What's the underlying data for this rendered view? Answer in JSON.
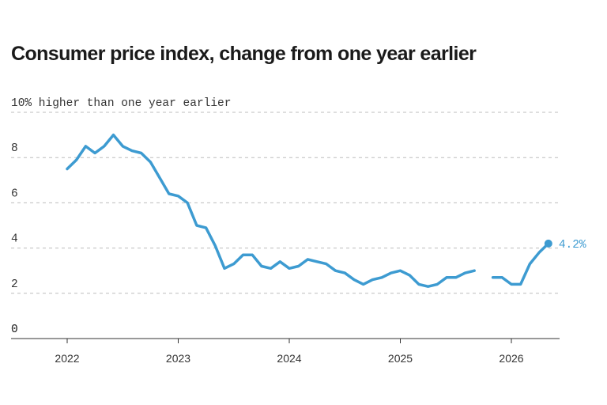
{
  "chart_data": {
    "type": "line",
    "title": "Consumer price index, change from one year earlier",
    "ylabel": "10% higher than one year earlier",
    "ylim": [
      0,
      10
    ],
    "yticks": [
      {
        "value": 10,
        "label": ""
      },
      {
        "value": 8,
        "label": "8"
      },
      {
        "value": 6,
        "label": "6"
      },
      {
        "value": 4,
        "label": "4"
      },
      {
        "value": 2,
        "label": "2"
      },
      {
        "value": 0,
        "label": "0"
      }
    ],
    "xlim": [
      "2021-07",
      "2026-07"
    ],
    "xticks": [
      {
        "value": "2022-01",
        "label": "2022"
      },
      {
        "value": "2023-01",
        "label": "2023"
      },
      {
        "value": "2024-01",
        "label": "2024"
      },
      {
        "value": "2025-01",
        "label": "2025"
      },
      {
        "value": "2026-01",
        "label": "2026"
      }
    ],
    "grid": true,
    "series": [
      {
        "color": "#3d9bd1",
        "points": [
          [
            "2022-01",
            7.5
          ],
          [
            "2022-02",
            7.9
          ],
          [
            "2022-03",
            8.5
          ],
          [
            "2022-04",
            8.2
          ],
          [
            "2022-05",
            8.5
          ],
          [
            "2022-06",
            9.0
          ],
          [
            "2022-07",
            8.5
          ],
          [
            "2022-08",
            8.3
          ],
          [
            "2022-09",
            8.2
          ],
          [
            "2022-10",
            7.8
          ],
          [
            "2022-11",
            7.1
          ],
          [
            "2022-12",
            6.4
          ],
          [
            "2023-01",
            6.3
          ],
          [
            "2023-02",
            6.0
          ],
          [
            "2023-03",
            5.0
          ],
          [
            "2023-04",
            4.9
          ],
          [
            "2023-05",
            4.1
          ],
          [
            "2023-06",
            3.1
          ],
          [
            "2023-07",
            3.3
          ],
          [
            "2023-08",
            3.7
          ],
          [
            "2023-09",
            3.7
          ],
          [
            "2023-10",
            3.2
          ],
          [
            "2023-11",
            3.1
          ],
          [
            "2023-12",
            3.4
          ],
          [
            "2024-01",
            3.1
          ],
          [
            "2024-02",
            3.2
          ],
          [
            "2024-03",
            3.5
          ],
          [
            "2024-04",
            3.4
          ],
          [
            "2024-05",
            3.3
          ],
          [
            "2024-06",
            3.0
          ],
          [
            "2024-07",
            2.9
          ],
          [
            "2024-08",
            2.6
          ],
          [
            "2024-09",
            2.4
          ],
          [
            "2024-10",
            2.6
          ],
          [
            "2024-11",
            2.7
          ],
          [
            "2024-12",
            2.9
          ],
          [
            "2025-01",
            3.0
          ],
          [
            "2025-02",
            2.8
          ],
          [
            "2025-03",
            2.4
          ],
          [
            "2025-04",
            2.3
          ],
          [
            "2025-05",
            2.4
          ],
          [
            "2025-06",
            2.7
          ],
          [
            "2025-07",
            2.7
          ],
          [
            "2025-08",
            2.9
          ],
          [
            "2025-09",
            3.0
          ],
          [
            "2025-10",
            null
          ],
          [
            "2025-11",
            2.7
          ],
          [
            "2025-12",
            2.7
          ],
          [
            "2026-01",
            2.4
          ],
          [
            "2026-02",
            2.4
          ],
          [
            "2026-03",
            3.3
          ],
          [
            "2026-04",
            3.8
          ],
          [
            "2026-05",
            4.2
          ]
        ]
      }
    ],
    "end_label": "4.2%"
  }
}
